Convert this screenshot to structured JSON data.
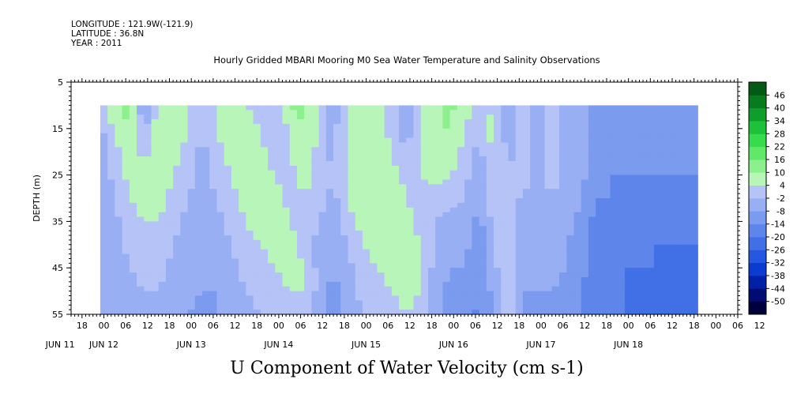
{
  "header": {
    "longitude": "LONGITUDE : 121.9W(-121.9)",
    "latitude": "LATITUDE : 36.8N",
    "year": "YEAR : 2011",
    "title": "Hourly Gridded MBARI Mooring M0 Sea Water Temperature and Salinity Observations"
  },
  "footer_label": "U Component of Water Velocity (cm s-1)",
  "chart_data": {
    "type": "heatmap",
    "title": "Hourly Gridded MBARI Mooring M0 Sea Water Temperature and Salinity Observations",
    "xlabel": "",
    "ylabel": "DEPTH (m)",
    "colorbar_label": "U Component of Water Velocity (cm s-1)",
    "x_unit": "hours since 2011-06-11 00:00",
    "xlim_hours": [
      -9,
      174
    ],
    "data_x_range_hours": [
      -1,
      163
    ],
    "ylim": [
      5,
      55
    ],
    "y_reversed": true,
    "y_ticks": [
      5,
      15,
      25,
      35,
      45,
      55
    ],
    "hour_ticks": [
      "18",
      "00",
      "06",
      "12",
      "18",
      "00",
      "06",
      "12",
      "18",
      "00",
      "06",
      "12",
      "18",
      "00",
      "06",
      "12",
      "18",
      "00",
      "06",
      "12",
      "18",
      "00",
      "06",
      "12",
      "18",
      "00",
      "06",
      "12",
      "18",
      "00",
      "06",
      "12"
    ],
    "day_labels": [
      "JUN 11",
      "JUN 12",
      "JUN 13",
      "JUN 14",
      "JUN 15",
      "JUN 16",
      "JUN 17",
      "JUN 18"
    ],
    "day_label_hours": [
      -12,
      0,
      24,
      48,
      72,
      96,
      120,
      144
    ],
    "colorbar": {
      "levels": [
        -50,
        -44,
        -38,
        -32,
        -26,
        -20,
        -14,
        -8,
        -2,
        4,
        10,
        16,
        22,
        28,
        34,
        40,
        46
      ],
      "labels": [
        "46",
        "40",
        "34",
        "28",
        "22",
        "16",
        "10",
        "4",
        "-2",
        "-8",
        "-14",
        "-20",
        "-26",
        "-32",
        "-38",
        "-44",
        "-50"
      ],
      "colors": [
        "#00003c",
        "#000b73",
        "#0021a6",
        "#0b3bd0",
        "#2557e0",
        "#4170e6",
        "#5e86ea",
        "#7b9bef",
        "#99aff3",
        "#b5c3f7",
        "#b8f5b8",
        "#8cf08c",
        "#5fe86a",
        "#36dc4c",
        "#1cc23a",
        "#0e9e2a",
        "#067c1e",
        "#035a14"
      ]
    },
    "approx_field": {
      "description_rows_depth_m": [
        10,
        15,
        20,
        25,
        30,
        35,
        40,
        45,
        50,
        55
      ],
      "cols_hour": [
        -1,
        3,
        7,
        11,
        15,
        19,
        23,
        27,
        31,
        35,
        39,
        43,
        47,
        51,
        55,
        59,
        63,
        67,
        71,
        75,
        79,
        83,
        87,
        91,
        95,
        99,
        103,
        107,
        111,
        115,
        119,
        123,
        127,
        131,
        135,
        139,
        143,
        147,
        151,
        155,
        159,
        163
      ],
      "u_cm_s": [
        [
          -2,
          8,
          12,
          -8,
          6,
          10,
          4,
          -4,
          6,
          8,
          4,
          2,
          -2,
          10,
          12,
          4,
          -6,
          4,
          6,
          8,
          2,
          -10,
          4,
          8,
          12,
          6,
          2,
          4,
          -8,
          2,
          -6,
          4,
          -8,
          -6,
          -10,
          -10,
          -10,
          -10,
          -10,
          -10,
          -10,
          -10
        ],
        [
          -4,
          6,
          10,
          -4,
          8,
          10,
          4,
          -2,
          4,
          8,
          6,
          4,
          -4,
          6,
          10,
          4,
          -4,
          6,
          8,
          6,
          2,
          -6,
          6,
          10,
          10,
          4,
          0,
          6,
          -6,
          4,
          -4,
          4,
          -6,
          -4,
          -10,
          -10,
          -10,
          -10,
          -10,
          -10,
          -10,
          -12
        ],
        [
          -6,
          2,
          8,
          2,
          8,
          6,
          2,
          -4,
          2,
          6,
          8,
          6,
          0,
          4,
          8,
          2,
          -4,
          6,
          10,
          8,
          4,
          -2,
          6,
          8,
          8,
          2,
          -4,
          6,
          -4,
          2,
          -4,
          2,
          -6,
          -4,
          -12,
          -12,
          -12,
          -12,
          -12,
          -12,
          -12,
          -12
        ],
        [
          -6,
          0,
          6,
          6,
          8,
          4,
          0,
          -4,
          0,
          4,
          8,
          8,
          4,
          2,
          6,
          2,
          -2,
          6,
          10,
          10,
          6,
          2,
          4,
          6,
          4,
          0,
          -6,
          4,
          -2,
          0,
          -4,
          0,
          -4,
          -6,
          -12,
          -14,
          -14,
          -14,
          -14,
          -14,
          -14,
          -14
        ],
        [
          -8,
          -2,
          4,
          6,
          6,
          2,
          -2,
          -6,
          -2,
          2,
          6,
          10,
          6,
          2,
          4,
          0,
          -4,
          4,
          8,
          10,
          8,
          4,
          2,
          2,
          0,
          -2,
          -8,
          2,
          -2,
          -2,
          -6,
          -2,
          -4,
          -8,
          -14,
          -14,
          -16,
          -16,
          -16,
          -16,
          -16,
          -16
        ],
        [
          -8,
          -4,
          2,
          4,
          4,
          0,
          -4,
          -6,
          -4,
          0,
          4,
          8,
          8,
          4,
          2,
          -2,
          -6,
          2,
          6,
          8,
          8,
          6,
          2,
          -2,
          -4,
          -4,
          -10,
          0,
          0,
          -4,
          -6,
          -4,
          -6,
          -10,
          -16,
          -16,
          -16,
          -18,
          -18,
          -18,
          -18,
          -18
        ],
        [
          -8,
          -6,
          0,
          2,
          2,
          -2,
          -4,
          -6,
          -6,
          -2,
          2,
          4,
          6,
          6,
          2,
          -4,
          -8,
          -2,
          4,
          6,
          8,
          6,
          4,
          -4,
          -6,
          -6,
          -12,
          -2,
          2,
          -6,
          -8,
          -4,
          -8,
          -12,
          -16,
          -18,
          -18,
          -18,
          -20,
          -20,
          -20,
          -20
        ],
        [
          -6,
          -6,
          -2,
          0,
          0,
          -4,
          -6,
          -8,
          -6,
          -4,
          0,
          2,
          4,
          6,
          4,
          -4,
          -8,
          -4,
          2,
          4,
          6,
          6,
          4,
          -4,
          -8,
          -8,
          -14,
          -4,
          4,
          -6,
          -8,
          -6,
          -8,
          -12,
          -18,
          -18,
          -20,
          -20,
          -20,
          -22,
          -22,
          -22
        ],
        [
          -4,
          -6,
          -4,
          -2,
          -2,
          -6,
          -6,
          -8,
          -8,
          -6,
          -2,
          0,
          2,
          4,
          4,
          -4,
          -10,
          -6,
          0,
          2,
          4,
          6,
          4,
          -6,
          -10,
          -8,
          -14,
          -6,
          4,
          -8,
          -8,
          -8,
          -10,
          -14,
          -18,
          -20,
          -20,
          -22,
          -22,
          -22,
          -22,
          -22
        ],
        [
          -4,
          -8,
          -6,
          -4,
          -4,
          -6,
          -8,
          -10,
          -8,
          -6,
          -4,
          -2,
          0,
          2,
          2,
          -6,
          -10,
          -6,
          -2,
          0,
          2,
          4,
          2,
          -6,
          -10,
          -10,
          -16,
          -6,
          2,
          -8,
          -10,
          -8,
          -10,
          -14,
          -18,
          -20,
          -20,
          -22,
          -22,
          -22,
          -22,
          -22
        ]
      ]
    }
  }
}
